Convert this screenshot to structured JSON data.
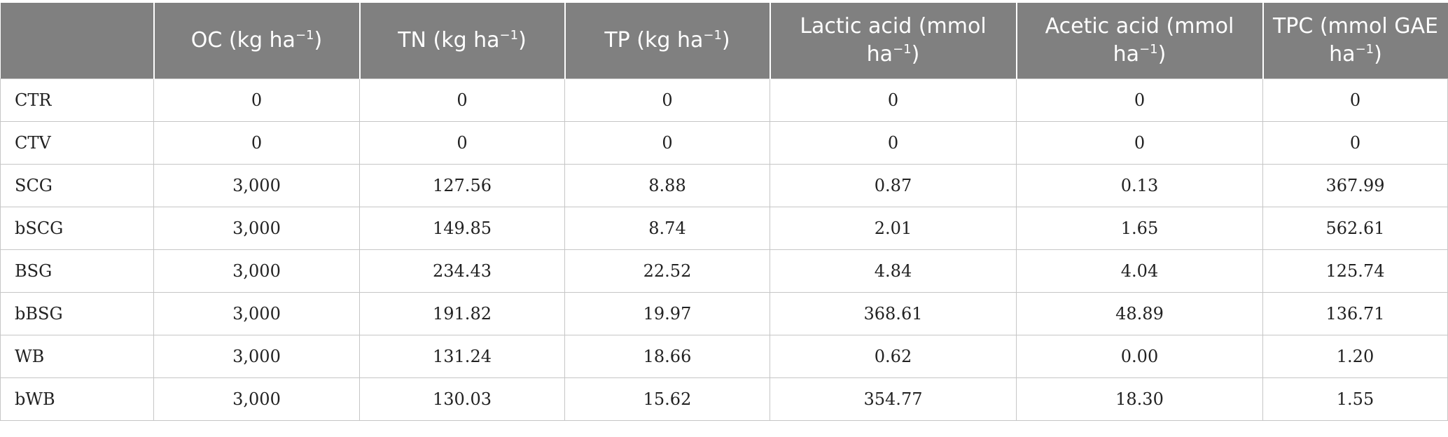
{
  "table": {
    "headers": [
      {
        "main": "",
        "sup": "",
        "tail": ""
      },
      {
        "main": "OC (kg ha",
        "sup": "−1",
        "tail": ")"
      },
      {
        "main": "TN (kg ha",
        "sup": "−1",
        "tail": ")"
      },
      {
        "main": "TP (kg ha",
        "sup": "−1",
        "tail": ")"
      },
      {
        "main": "Lactic acid (mmol ha",
        "sup": "−1",
        "tail": ")"
      },
      {
        "main": "Acetic acid (mmol ha",
        "sup": "−1",
        "tail": ")"
      },
      {
        "main": "TPC (mmol GAE ha",
        "sup": "−1",
        "tail": ")"
      }
    ],
    "rows": [
      [
        "CTR",
        "0",
        "0",
        "0",
        "0",
        "0",
        "0"
      ],
      [
        "CTV",
        "0",
        "0",
        "0",
        "0",
        "0",
        "0"
      ],
      [
        "SCG",
        "3,000",
        "127.56",
        "8.88",
        "0.87",
        "0.13",
        "367.99"
      ],
      [
        "bSCG",
        "3,000",
        "149.85",
        "8.74",
        "2.01",
        "1.65",
        "562.61"
      ],
      [
        "BSG",
        "3,000",
        "234.43",
        "22.52",
        "4.84",
        "4.04",
        "125.74"
      ],
      [
        "bBSG",
        "3,000",
        "191.82",
        "19.97",
        "368.61",
        "48.89",
        "136.71"
      ],
      [
        "WB",
        "3,000",
        "131.24",
        "18.66",
        "0.62",
        "0.00",
        "1.20"
      ],
      [
        "bWB",
        "3,000",
        "130.03",
        "15.62",
        "354.77",
        "18.30",
        "1.55"
      ]
    ]
  }
}
